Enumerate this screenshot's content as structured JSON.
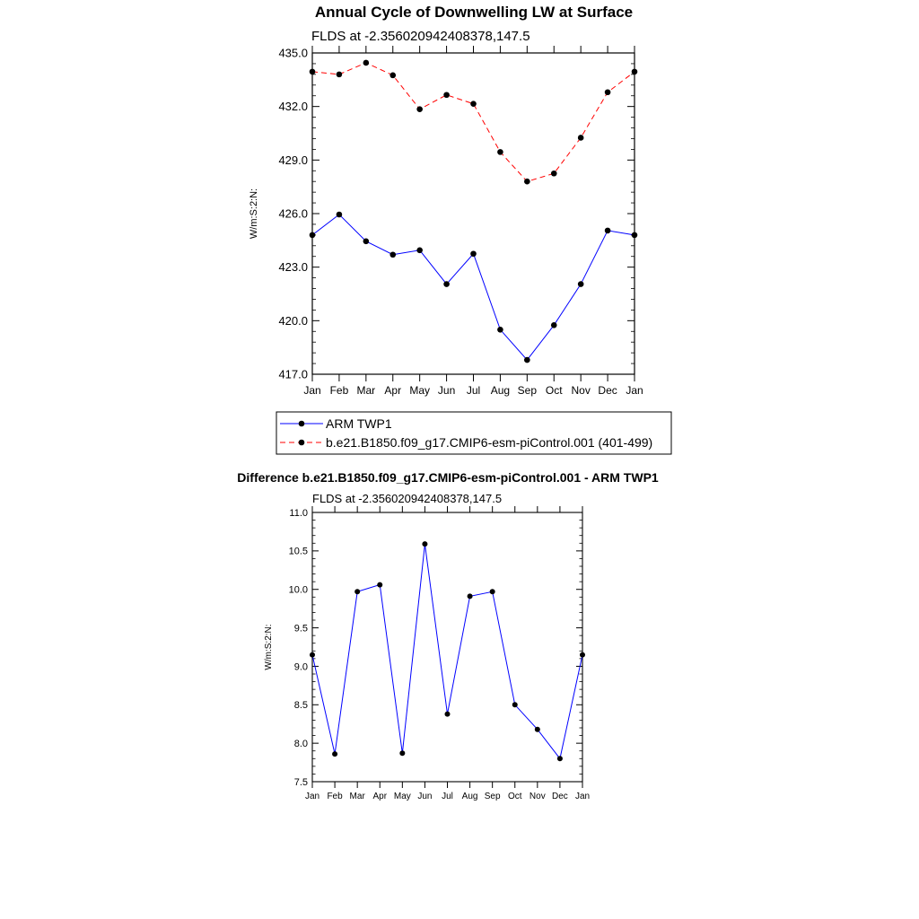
{
  "chart_data": [
    {
      "type": "line",
      "title": "Annual Cycle of Downwelling LW at Surface",
      "subtitle": "FLDS at -2.356020942408378,147.5",
      "ylabel": "W/m:S:2:N:",
      "xlabel": "",
      "ylim": [
        417.0,
        435.0
      ],
      "yticks": [
        "435.0",
        "432.0",
        "429.0",
        "426.0",
        "423.0",
        "420.0",
        "417.0"
      ],
      "categories": [
        "Jan",
        "Feb",
        "Mar",
        "Apr",
        "May",
        "Jun",
        "Jul",
        "Aug",
        "Sep",
        "Oct",
        "Nov",
        "Dec",
        "Jan"
      ],
      "grid": false,
      "legend_position": "bottom",
      "series": [
        {
          "name": "ARM TWP1",
          "color": "#0000ff",
          "dash": "solid",
          "values": [
            424.8,
            425.95,
            424.45,
            423.7,
            423.95,
            422.05,
            423.75,
            419.5,
            417.8,
            419.75,
            422.05,
            425.05,
            424.8
          ]
        },
        {
          "name": "b.e21.B1850.f09_g17.CMIP6-esm-piControl.001 (401-499)",
          "color": "#ff0000",
          "dash": "dashed",
          "values": [
            433.95,
            433.8,
            434.45,
            433.75,
            431.85,
            432.65,
            432.15,
            429.45,
            427.8,
            428.25,
            430.25,
            432.8,
            433.95
          ]
        }
      ]
    },
    {
      "type": "line",
      "title": "Difference b.e21.B1850.f09_g17.CMIP6-esm-piControl.001 - ARM TWP1",
      "subtitle": "FLDS at -2.356020942408378,147.5",
      "ylabel": "W/m:S:2:N:",
      "xlabel": "",
      "ylim": [
        7.5,
        11.0
      ],
      "yticks": [
        "11.0",
        "10.5",
        "10.0",
        "9.5",
        "9.0",
        "8.5",
        "8.0",
        "7.5"
      ],
      "categories": [
        "Jan",
        "Feb",
        "Mar",
        "Apr",
        "May",
        "Jun",
        "Jul",
        "Aug",
        "Sep",
        "Oct",
        "Nov",
        "Dec",
        "Jan"
      ],
      "grid": false,
      "series": [
        {
          "color": "#0000ff",
          "dash": "solid",
          "values": [
            9.15,
            7.86,
            9.97,
            10.06,
            7.87,
            10.59,
            8.38,
            9.91,
            9.97,
            8.5,
            8.18,
            7.8,
            9.15
          ]
        }
      ]
    }
  ]
}
